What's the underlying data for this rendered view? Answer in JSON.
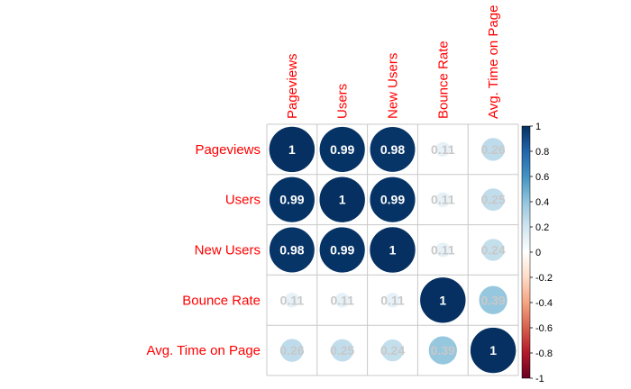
{
  "chart_data": {
    "type": "heatmap",
    "style": "correlation-matrix-circles",
    "variables": [
      "Pageviews",
      "Users",
      "New Users",
      "Bounce Rate",
      "Avg. Time on Page"
    ],
    "matrix": [
      [
        1,
        0.99,
        0.98,
        0.11,
        0.26
      ],
      [
        0.99,
        1,
        0.99,
        0.11,
        0.25
      ],
      [
        0.98,
        0.99,
        1,
        0.11,
        0.24
      ],
      [
        0.11,
        0.11,
        0.11,
        1,
        0.39
      ],
      [
        0.26,
        0.25,
        0.24,
        0.39,
        1
      ]
    ],
    "cell_labels": [
      [
        "1",
        "0.99",
        "0.98",
        "0.11",
        "0.26"
      ],
      [
        "0.99",
        "1",
        "0.99",
        "0.11",
        "0.25"
      ],
      [
        "0.98",
        "0.99",
        "1",
        "0.11",
        "0.24"
      ],
      [
        "0.11",
        "0.11",
        "0.11",
        "1",
        "0.39"
      ],
      [
        "0.26",
        "0.25",
        "0.24",
        "0.39",
        "1"
      ]
    ],
    "colorbar": {
      "range": [
        -1,
        1
      ],
      "ticks": [
        "1",
        "0.8",
        "0.6",
        "0.4",
        "0.2",
        "0",
        "-0.2",
        "-0.4",
        "-0.6",
        "-0.8",
        "-1"
      ]
    },
    "colors": {
      "label": "#ff0000",
      "grid": "#c8c8c8",
      "number_light": "#ffffff",
      "number_faint": "#c8c8c8",
      "scale_stops": [
        "#67001f",
        "#b2182b",
        "#d6604d",
        "#f4a582",
        "#fddbc7",
        "#ffffff",
        "#d1e5f0",
        "#92c5de",
        "#4393c3",
        "#2166ac",
        "#053061"
      ]
    }
  }
}
